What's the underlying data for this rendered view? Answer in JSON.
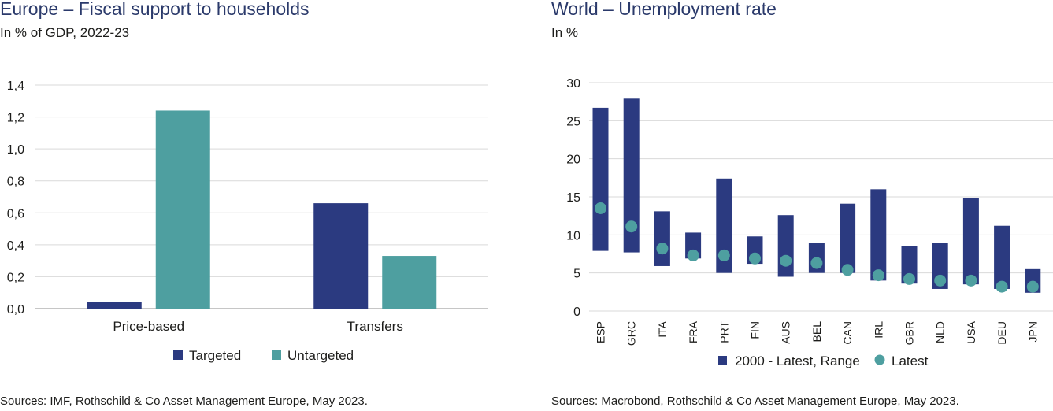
{
  "left": {
    "title": "Europe – Fiscal support to households",
    "subtitle": "In % of GDP, 2022-23",
    "source": "Sources: IMF, Rothschild & Co Asset Management Europe, May 2023."
  },
  "right": {
    "title": "World – Unemployment rate",
    "subtitle": "In %",
    "source": "Sources: Macrobond, Rothschild & Co Asset Management  Europe, May 2023."
  },
  "colors": {
    "navy": "#2b3a80",
    "teal": "#4e9fa0",
    "grid": "#d9d9d9",
    "axis": "#8c8c8c"
  },
  "chart_data": [
    {
      "type": "bar",
      "title": "Europe – Fiscal support to households",
      "subtitle": "In % of GDP, 2022-23",
      "categories": [
        "Price-based",
        "Transfers"
      ],
      "series": [
        {
          "name": "Targeted",
          "values": [
            0.04,
            0.66
          ],
          "color": "#2b3a80"
        },
        {
          "name": "Untargeted",
          "values": [
            1.24,
            0.33
          ],
          "color": "#4e9fa0"
        }
      ],
      "ylim": [
        0,
        1.4
      ],
      "yticks": [
        "0,0",
        "0,2",
        "0,4",
        "0,6",
        "0,8",
        "1,0",
        "1,2",
        "1,4"
      ],
      "grid": true,
      "legend": "bottom"
    },
    {
      "type": "range-dot",
      "title": "World – Unemployment rate",
      "subtitle": "In %",
      "categories": [
        "ESP",
        "GRC",
        "ITA",
        "FRA",
        "PRT",
        "FIN",
        "AUS",
        "BEL",
        "CAN",
        "IRL",
        "GBR",
        "NLD",
        "USA",
        "DEU",
        "JPN"
      ],
      "series": [
        {
          "name": "2000 - Latest, Range",
          "color": "#2b3a80",
          "low": [
            7.9,
            7.7,
            5.9,
            6.9,
            5.0,
            6.2,
            4.5,
            5.0,
            5.0,
            4.0,
            3.6,
            2.9,
            3.5,
            2.9,
            2.4
          ],
          "high": [
            26.7,
            27.9,
            13.1,
            10.3,
            17.4,
            9.8,
            12.6,
            9.0,
            14.1,
            16.0,
            8.5,
            9.0,
            14.8,
            11.2,
            5.5
          ]
        },
        {
          "name": "Latest",
          "color": "#4e9fa0",
          "values": [
            13.5,
            11.1,
            8.2,
            7.3,
            7.3,
            6.9,
            6.6,
            6.3,
            5.4,
            4.7,
            4.2,
            4.0,
            4.0,
            3.2,
            3.2
          ]
        }
      ],
      "ylim": [
        0,
        30
      ],
      "yticks": [
        "0",
        "5",
        "10",
        "15",
        "20",
        "25",
        "30"
      ],
      "grid": true,
      "legend": "bottom"
    }
  ]
}
